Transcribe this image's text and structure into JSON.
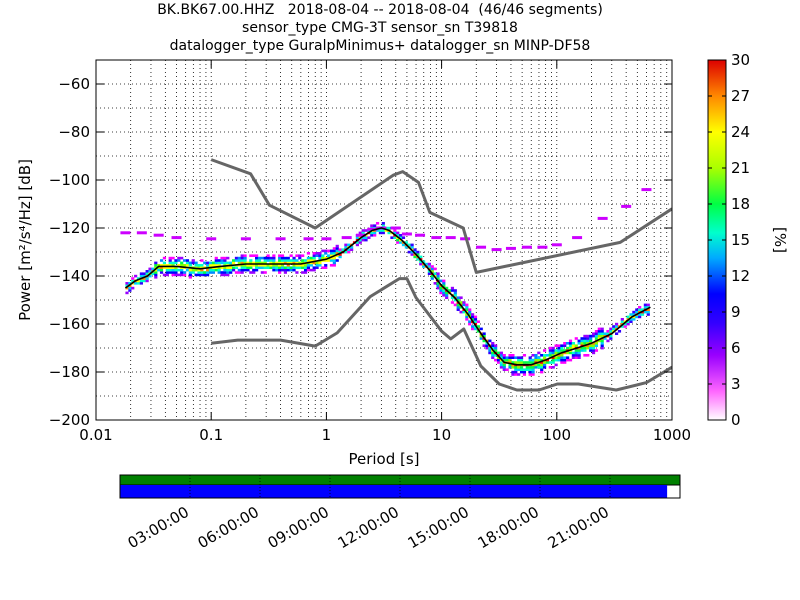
{
  "titles": {
    "line1": "BK.BK67.00.HHZ   2018-08-04 -- 2018-08-04  (46/46 segments)",
    "line2": "sensor_type CMG-3T sensor_sn T39818",
    "line3": "datalogger_type GuralpMinimus+ datalogger_sn MINP-DF58"
  },
  "chart_data": {
    "type": "heatmap",
    "xlabel": "Period [s]",
    "ylabel": "Power [m²/s⁴/Hz] [dB]",
    "x_scale": "log",
    "xlim": [
      0.01,
      1000
    ],
    "ylim": [
      -200,
      -50
    ],
    "x_ticks": [
      {
        "value": 0.01,
        "label": "0.01"
      },
      {
        "value": 0.1,
        "label": "0.1"
      },
      {
        "value": 1,
        "label": "1"
      },
      {
        "value": 10,
        "label": "10"
      },
      {
        "value": 100,
        "label": "100"
      },
      {
        "value": 1000,
        "label": "1000"
      }
    ],
    "y_ticks": [
      {
        "value": -60,
        "label": "−60"
      },
      {
        "value": -80,
        "label": "−80"
      },
      {
        "value": -100,
        "label": "−100"
      },
      {
        "value": -120,
        "label": "−120"
      },
      {
        "value": -140,
        "label": "−140"
      },
      {
        "value": -160,
        "label": "−160"
      },
      {
        "value": -180,
        "label": "−180"
      },
      {
        "value": -200,
        "label": "−200"
      }
    ],
    "grid": "dotted",
    "noise_models": {
      "high": {
        "x": [
          0.1,
          0.22,
          0.32,
          0.8,
          3.8,
          4.6,
          6.3,
          7.9,
          15.4,
          20,
          354.8,
          1000
        ],
        "y": [
          -91.5,
          -97.4,
          -110.5,
          -120,
          -98,
          -96.5,
          -101,
          -113.5,
          -120,
          -138.5,
          -126,
          -112
        ]
      },
      "low": {
        "x": [
          0.1,
          0.17,
          0.4,
          0.8,
          1.24,
          2.4,
          4.3,
          5,
          6,
          10,
          12,
          15.6,
          21.9,
          31.6,
          45,
          70,
          101,
          154,
          328,
          600,
          1000
        ],
        "y": [
          -168,
          -166.7,
          -166.7,
          -169.2,
          -163.7,
          -148.6,
          -141.1,
          -141.1,
          -149,
          -163,
          -166.2,
          -162.1,
          -177.5,
          -185,
          -187.5,
          -187.5,
          -185,
          -185,
          -187.5,
          -184.4,
          -178
        ]
      }
    },
    "mode_curve": {
      "x": [
        0.018,
        0.022,
        0.028,
        0.035,
        0.05,
        0.08,
        0.12,
        0.2,
        0.35,
        0.6,
        1,
        1.4,
        2,
        2.5,
        3,
        3.5,
        4.5,
        6,
        8,
        10,
        13,
        17,
        22,
        28,
        35,
        45,
        60,
        80,
        110,
        150,
        200,
        300,
        450,
        650
      ],
      "y": [
        -145,
        -142,
        -140,
        -136,
        -136,
        -137,
        -136,
        -135,
        -135,
        -135,
        -133,
        -130,
        -124,
        -121,
        -120,
        -121,
        -125,
        -131,
        -138,
        -144,
        -149,
        -156,
        -164,
        -171,
        -176,
        -177,
        -177,
        -175,
        -172,
        -170,
        -168,
        -164,
        -157,
        -153
      ]
    },
    "percentile_line": {
      "x": [
        0.018,
        0.025,
        0.035,
        0.05,
        0.1,
        0.2,
        0.4,
        0.7,
        1,
        1.5,
        2,
        2.5,
        3,
        4,
        5,
        6.5,
        9,
        12,
        16,
        22,
        30,
        40,
        55,
        75,
        100,
        150,
        250,
        400,
        600
      ],
      "y": [
        -122,
        -122,
        -123,
        -124,
        -124.5,
        -124.5,
        -124.5,
        -124.5,
        -124.5,
        -124,
        -123,
        -120.5,
        -120,
        -120,
        -122.5,
        -123,
        -124,
        -124,
        -124.5,
        -128,
        -129,
        -128.5,
        -128,
        -128,
        -127,
        -124,
        -116,
        -111,
        -104
      ]
    },
    "colorbar": {
      "label": "[%]",
      "min": 0,
      "max": 30,
      "ticks": [
        "0",
        "3",
        "6",
        "9",
        "12",
        "15",
        "18",
        "21",
        "24",
        "27",
        "30"
      ]
    },
    "colors": {
      "noise_model": "#666666",
      "mode": "#000000",
      "percentile": "#cc00ff",
      "grid": "#000000"
    }
  },
  "timeline": {
    "labels": [
      "03:00:00",
      "06:00:00",
      "09:00:00",
      "12:00:00",
      "15:00:00",
      "18:00:00",
      "21:00:00"
    ],
    "hours": [
      3,
      6,
      9,
      12,
      15,
      18,
      21
    ],
    "data_coverage_fraction": 0.977,
    "colors": {
      "gaps_bar": "#008000",
      "data_bar": "#0000ff"
    }
  }
}
